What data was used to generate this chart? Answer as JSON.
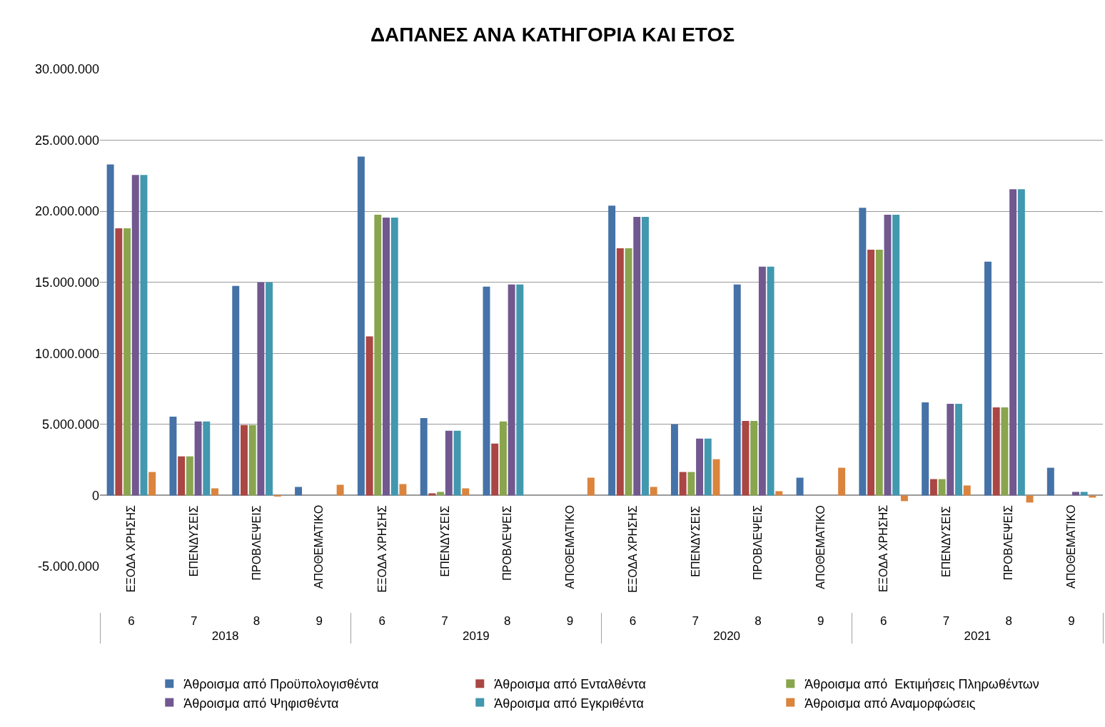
{
  "chart_data": {
    "type": "bar",
    "title": "ΔΑΠΑΝΕΣ ΑΝΑ ΚΑΤΗΓΟΡΙΑ ΚΑΙ ΕΤΟΣ",
    "categories": [
      [
        "ΕΞΟΔΑ ΧΡΗΣΗΣ",
        "6"
      ],
      [
        "ΕΠΕΝΔΥΣΕΙΣ",
        "7"
      ],
      [
        "ΠΡΟΒΛΕΨΕΙΣ",
        "8"
      ],
      [
        "ΑΠΟΘΕΜΑΤΙΚΟ",
        "9"
      ],
      [
        "ΕΞΟΔΑ ΧΡΗΣΗΣ",
        "6"
      ],
      [
        "ΕΠΕΝΔΥΣΕΙΣ",
        "7"
      ],
      [
        "ΠΡΟΒΛΕΨΕΙΣ",
        "8"
      ],
      [
        "ΑΠΟΘΕΜΑΤΙΚΟ",
        "9"
      ],
      [
        "ΕΞΟΔΑ ΧΡΗΣΗΣ",
        "6"
      ],
      [
        "ΕΠΕΝΔΥΣΕΙΣ",
        "7"
      ],
      [
        "ΠΡΟΒΛΕΨΕΙΣ",
        "8"
      ],
      [
        "ΑΠΟΘΕΜΑΤΙΚΟ",
        "9"
      ],
      [
        "ΕΞΟΔΑ ΧΡΗΣΗΣ",
        "6"
      ],
      [
        "ΕΠΕΝΔΥΣΕΙΣ",
        "7"
      ],
      [
        "ΠΡΟΒΛΕΨΕΙΣ",
        "8"
      ],
      [
        "ΑΠΟΘΕΜΑΤΙΚΟ",
        "9"
      ]
    ],
    "annotations": [
      "2018",
      "2019",
      "2020",
      "2021"
    ],
    "series": [
      {
        "name": "Άθροισμα από Προϋπολογισθέντα",
        "color": "#4572a7",
        "values": [
          23300000,
          5550000,
          14750000,
          600000,
          23850000,
          5450000,
          14700000,
          0,
          20400000,
          5000000,
          14850000,
          1250000,
          20250000,
          6550000,
          16450000,
          1950000
        ]
      },
      {
        "name": "Άθροισμα από Ενταλθέντα",
        "color": "#aa4643",
        "values": [
          18800000,
          2750000,
          4950000,
          0,
          11200000,
          150000,
          3650000,
          0,
          17400000,
          1650000,
          5250000,
          0,
          17300000,
          1150000,
          6200000,
          0
        ]
      },
      {
        "name": "Άθροισμα από  Εκτιμήσεις Πληρωθέντων",
        "color": "#89a54e",
        "values": [
          18800000,
          2750000,
          4950000,
          0,
          19750000,
          250000,
          5200000,
          0,
          17400000,
          1650000,
          5250000,
          0,
          17300000,
          1150000,
          6200000,
          0
        ]
      },
      {
        "name": "Άθροισμα από Ψηφισθέντα",
        "color": "#71588f",
        "values": [
          22550000,
          5200000,
          15000000,
          0,
          19550000,
          4550000,
          14850000,
          0,
          19600000,
          4000000,
          16100000,
          0,
          19750000,
          6450000,
          21550000,
          250000
        ]
      },
      {
        "name": "Άθροισμα από Εγκριθέντα",
        "color": "#4198af",
        "values": [
          22550000,
          5200000,
          15000000,
          0,
          19550000,
          4550000,
          14850000,
          0,
          19600000,
          4000000,
          16100000,
          0,
          19750000,
          6450000,
          21550000,
          250000
        ]
      },
      {
        "name": "Άθροισμα από Αναμορφώσεις",
        "color": "#db843d",
        "values": [
          1650000,
          500000,
          -50000,
          750000,
          800000,
          500000,
          0,
          1250000,
          600000,
          2550000,
          300000,
          1950000,
          -400000,
          700000,
          -500000,
          -150000
        ]
      }
    ],
    "ylim": [
      -5000000,
      30000000
    ],
    "yticks": [
      {
        "value": -5000000,
        "label": "-5.000.000"
      },
      0,
      {
        "value": 5000000,
        "label": "5.000.000"
      },
      {
        "value": 10000000,
        "label": "10.000.000"
      },
      {
        "value": 15000000,
        "label": "15.000.000"
      },
      {
        "value": 20000000,
        "label": "20.000.000"
      },
      {
        "value": 25000000,
        "label": "25.000.000"
      },
      {
        "value": 30000000,
        "label": "30.000.000"
      }
    ],
    "grid": "y",
    "legend": "bottom"
  }
}
